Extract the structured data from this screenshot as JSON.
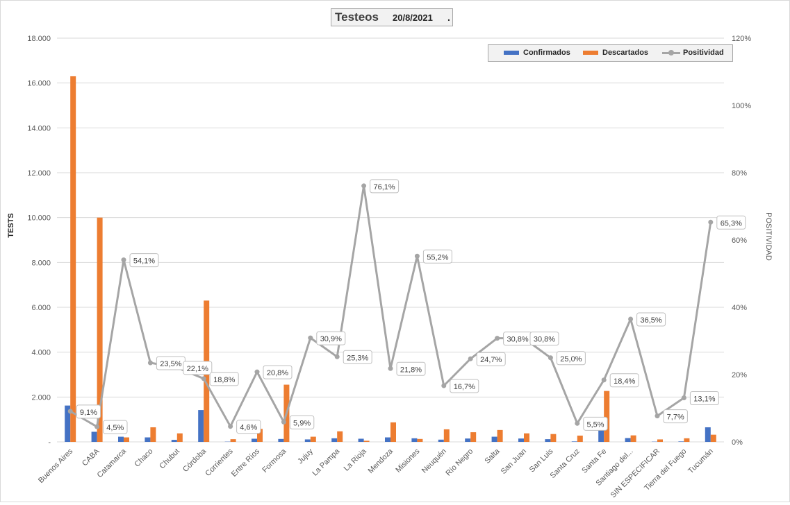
{
  "chart_data": {
    "type": "bar",
    "title": "Testeos",
    "subtitle": "20/8/2021",
    "title_suffix": ".",
    "ylabel": "TESTS",
    "y2label": "POSITIVIDAD",
    "ylim": [
      0,
      18000
    ],
    "y2lim": [
      0,
      120
    ],
    "yticks": [
      "-",
      "2.000",
      "4.000",
      "6.000",
      "8.000",
      "10.000",
      "12.000",
      "14.000",
      "16.000",
      "18.000"
    ],
    "y2ticks": [
      "0%",
      "20%",
      "40%",
      "60%",
      "80%",
      "100%",
      "120%"
    ],
    "grid": true,
    "legend_position": "top-right",
    "categories": [
      "Buenos Aires",
      "CABA",
      "Catamarca",
      "Chaco",
      "Chubut",
      "Córdoba",
      "Corrientes",
      "Entre Ríos",
      "Formosa",
      "Jujuy",
      "La Pampa",
      "La Rioja",
      "Mendoza",
      "Misiones",
      "Neuquén",
      "Río Negro",
      "Salta",
      "San Juan",
      "San Luis",
      "Santa Cruz",
      "Santa Fe",
      "Santiago del...",
      "SIN ESPECIFICAR",
      "Tierra del Fuego",
      "Tucumán"
    ],
    "series": [
      {
        "name": "Confirmados",
        "kind": "bar",
        "axis": "left",
        "color": "#4472c4",
        "values": [
          1620,
          450,
          230,
          200,
          90,
          1420,
          10,
          140,
          130,
          110,
          160,
          140,
          200,
          160,
          100,
          150,
          230,
          150,
          120,
          20,
          510,
          170,
          10,
          20,
          650
        ]
      },
      {
        "name": "Descartados",
        "kind": "bar",
        "axis": "left",
        "color": "#ed7d31",
        "values": [
          16300,
          10000,
          200,
          650,
          380,
          6300,
          120,
          580,
          2550,
          230,
          470,
          50,
          870,
          130,
          560,
          430,
          530,
          380,
          350,
          280,
          2270,
          290,
          110,
          160,
          320
        ]
      },
      {
        "name": "Positividad",
        "kind": "line",
        "axis": "right",
        "color": "#a5a5a5",
        "values": [
          9.1,
          4.5,
          54.1,
          23.5,
          22.1,
          18.8,
          4.6,
          20.8,
          5.9,
          30.9,
          25.3,
          76.1,
          21.8,
          55.2,
          16.7,
          24.7,
          30.8,
          30.8,
          25.0,
          5.5,
          18.4,
          36.5,
          7.7,
          13.1,
          65.3
        ],
        "labels": [
          "9,1%",
          "4,5%",
          "54,1%",
          "23,5%",
          "22,1%",
          "18,8%",
          "4,6%",
          "20,8%",
          "5,9%",
          "30,9%",
          "25,3%",
          "76,1%",
          "21,8%",
          "55,2%",
          "16,7%",
          "24,7%",
          "30,8%",
          "30,8%",
          "25,0%",
          "5,5%",
          "18,4%",
          "36,5%",
          "7,7%",
          "13,1%",
          "65,3%"
        ]
      }
    ]
  }
}
